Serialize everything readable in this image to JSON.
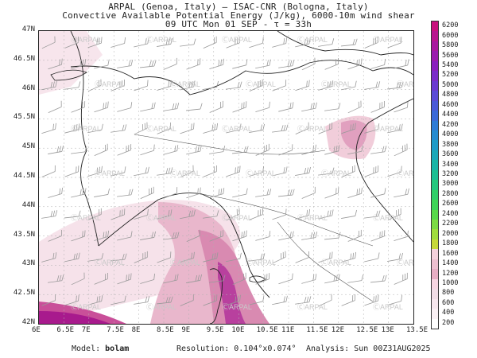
{
  "header": {
    "line1": "ARPAL (Genoa, Italy)  —  ISAC-CNR (Bologna, Italy)",
    "line2": "Convective Available Potential Energy (J/kg), 6000-10m wind shear",
    "line3": "09 UTC Mon 01 SEP  -  τ = 33h"
  },
  "map": {
    "x_axis_labels": [
      "6E",
      "6.5E",
      "7E",
      "7.5E",
      "8E",
      "8.5E",
      "9E",
      "9.5E",
      "10E",
      "10.5E",
      "11E",
      "11.5E",
      "12E",
      "12.5E",
      "13E",
      "13.5E"
    ],
    "y_axis_labels": [
      "47N",
      "46.5N",
      "46N",
      "45.5N",
      "45N",
      "44.5N",
      "44N",
      "43.5N",
      "43N",
      "42.5N",
      "42N"
    ],
    "watermark": "ARPAL",
    "colors": {
      "land_border": "#222222",
      "coast": "#111111",
      "wind_barb": "#999999",
      "grid": "#b0b0b0"
    }
  },
  "colorbar": {
    "levels": [
      "6200",
      "6000",
      "5800",
      "5600",
      "5400",
      "5200",
      "5000",
      "4800",
      "4600",
      "4400",
      "4200",
      "4000",
      "3800",
      "3600",
      "3400",
      "3200",
      "3000",
      "2800",
      "2600",
      "2400",
      "2200",
      "2000",
      "1800",
      "1600",
      "1400",
      "1200",
      "1000",
      "800",
      "600",
      "400",
      "200"
    ],
    "colors": [
      "#c8117e",
      "#b8158f",
      "#a8189f",
      "#9a1cae",
      "#8a20be",
      "#7a2cc8",
      "#6a3ad0",
      "#5a4bd6",
      "#4a5ad8",
      "#3b6ad8",
      "#2e7bd6",
      "#258bd0",
      "#1e9bc7",
      "#1aa8b8",
      "#18b5a6",
      "#1bbf92",
      "#24c87d",
      "#31cf68",
      "#3fd557",
      "#58d94a",
      "#7cdb42",
      "#a0dc3c",
      "#c6d839",
      "#f4d2dc",
      "#eec0d0",
      "#e8aec4",
      "#f7d6e2",
      "#f1dde6",
      "#f7e7ee",
      "#fbf1f5",
      "#ffffff"
    ]
  },
  "footer": {
    "model_label": "Model:",
    "model_value": "bolam",
    "resolution_label": "Resolution:",
    "resolution_value": "0.104°x0.074°",
    "analysis_label": "Analysis:",
    "analysis_value": "Sun 00Z31AUG2025"
  }
}
